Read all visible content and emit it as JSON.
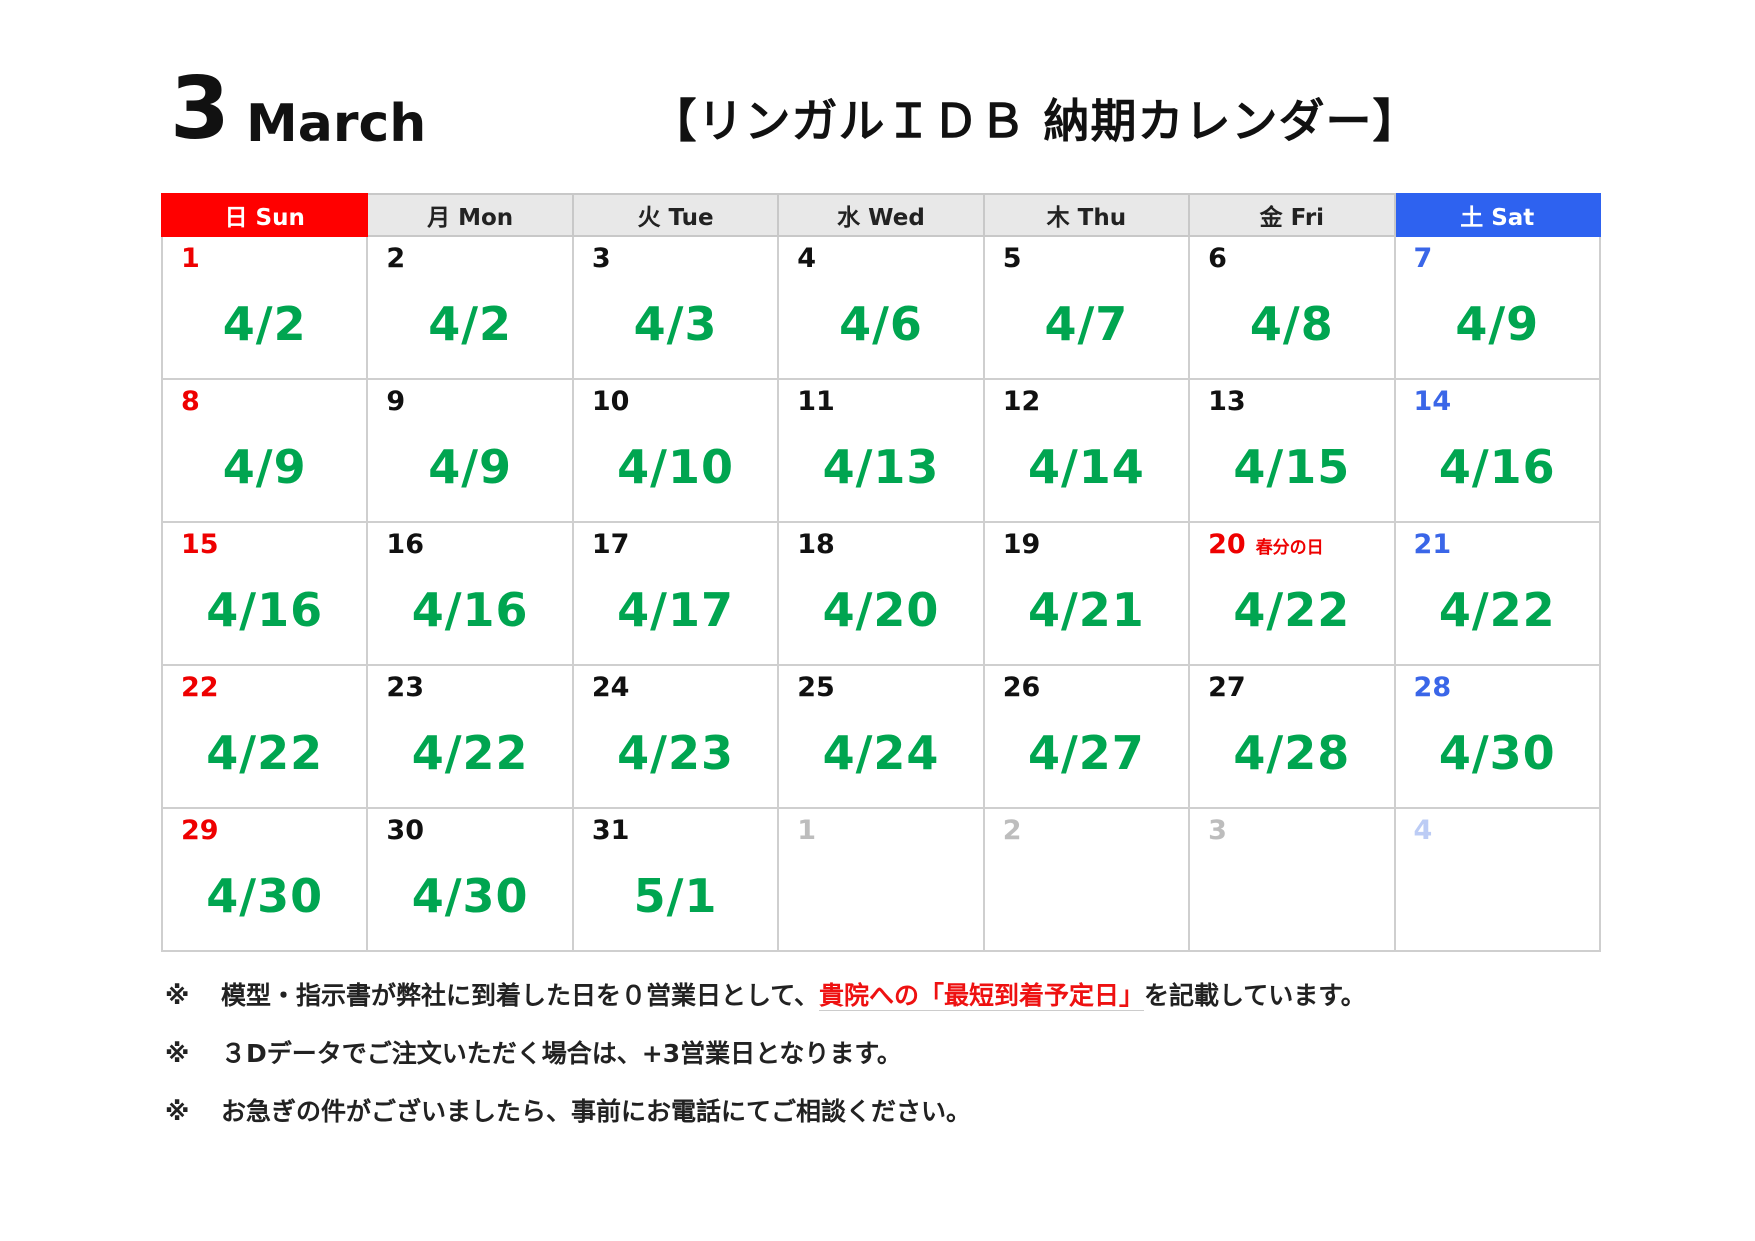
{
  "header": {
    "month_number": "3",
    "month_name": "March",
    "title": "【リンガルＩＤＢ 納期カレンダー】"
  },
  "colors": {
    "sunday": "#ff0000",
    "saturday": "#2e62f0",
    "delivery": "#00a550",
    "header_bg": "#e8e8e8"
  },
  "weekdays": [
    "日 Sun",
    "月 Mon",
    "火 Tue",
    "水 Wed",
    "木 Thu",
    "金 Fri",
    "土 Sat"
  ],
  "weeks": [
    [
      {
        "day": "1",
        "delivery": "4/2"
      },
      {
        "day": "2",
        "delivery": "4/2"
      },
      {
        "day": "3",
        "delivery": "4/3"
      },
      {
        "day": "4",
        "delivery": "4/6"
      },
      {
        "day": "5",
        "delivery": "4/7"
      },
      {
        "day": "6",
        "delivery": "4/8"
      },
      {
        "day": "7",
        "delivery": "4/9"
      }
    ],
    [
      {
        "day": "8",
        "delivery": "4/9"
      },
      {
        "day": "9",
        "delivery": "4/9"
      },
      {
        "day": "10",
        "delivery": "4/10"
      },
      {
        "day": "11",
        "delivery": "4/13"
      },
      {
        "day": "12",
        "delivery": "4/14"
      },
      {
        "day": "13",
        "delivery": "4/15"
      },
      {
        "day": "14",
        "delivery": "4/16"
      }
    ],
    [
      {
        "day": "15",
        "delivery": "4/16"
      },
      {
        "day": "16",
        "delivery": "4/16"
      },
      {
        "day": "17",
        "delivery": "4/17"
      },
      {
        "day": "18",
        "delivery": "4/20"
      },
      {
        "day": "19",
        "delivery": "4/21"
      },
      {
        "day": "20",
        "delivery": "4/22",
        "holiday": "春分の日"
      },
      {
        "day": "21",
        "delivery": "4/22"
      }
    ],
    [
      {
        "day": "22",
        "delivery": "4/22"
      },
      {
        "day": "23",
        "delivery": "4/22"
      },
      {
        "day": "24",
        "delivery": "4/23"
      },
      {
        "day": "25",
        "delivery": "4/24"
      },
      {
        "day": "26",
        "delivery": "4/27"
      },
      {
        "day": "27",
        "delivery": "4/28"
      },
      {
        "day": "28",
        "delivery": "4/30"
      }
    ],
    [
      {
        "day": "29",
        "delivery": "4/30"
      },
      {
        "day": "30",
        "delivery": "4/30"
      },
      {
        "day": "31",
        "delivery": "5/1"
      },
      {
        "day": "1",
        "other": true
      },
      {
        "day": "2",
        "other": true
      },
      {
        "day": "3",
        "other": true
      },
      {
        "day": "4",
        "other": true
      }
    ]
  ],
  "notes": [
    {
      "mark": "※",
      "before": "模型・指示書が弊社に到着した日を０営業日として、",
      "highlight": "貴院への「最短到着予定日」",
      "after": "を記載しています。"
    },
    {
      "mark": "※",
      "before": "３Dデータでご注文いただく場合は、+3営業日となります。"
    },
    {
      "mark": "※",
      "before": "お急ぎの件がございましたら、事前にお電話にてご相談ください。"
    }
  ]
}
